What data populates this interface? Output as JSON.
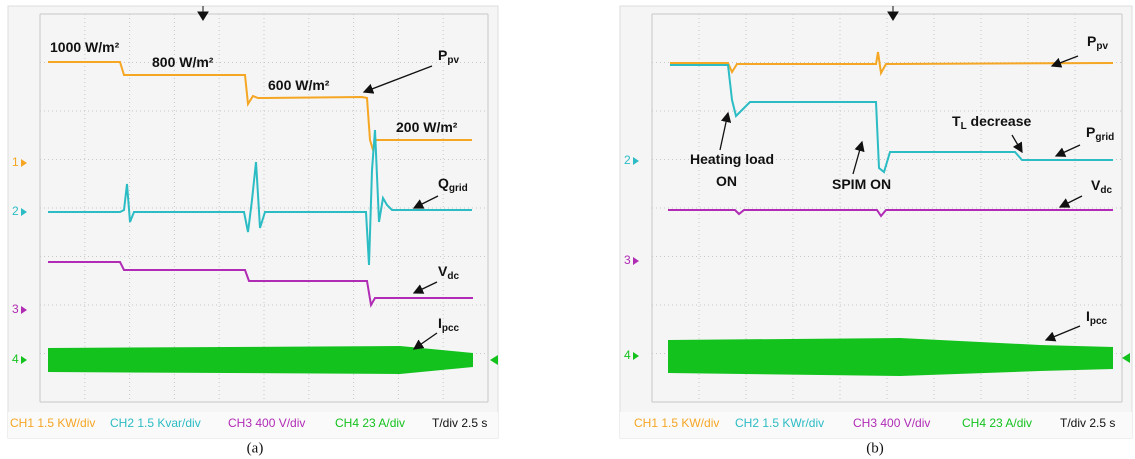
{
  "panels": [
    {
      "caption": "(a)",
      "annotations": [
        {
          "text": "1000 W/m²"
        },
        {
          "text": "800 W/m²"
        },
        {
          "text": "600 W/m²"
        },
        {
          "text": "200 W/m²"
        },
        {
          "text": "P",
          "sub": "pv"
        },
        {
          "text": "Q",
          "sub": "grid"
        },
        {
          "text": "V",
          "sub": "dc"
        },
        {
          "text": "I",
          "sub": "pcc"
        }
      ],
      "channel_markers": [
        "1",
        "2",
        "3",
        "4"
      ],
      "info": [
        "CH1 1.5 KW/div",
        "CH2 1.5 Kvar/div",
        "CH3 400 V/div",
        "CH4 23 A/div",
        "T/div 2.5 s"
      ]
    },
    {
      "caption": "(b)",
      "annotations": [
        {
          "text": "P",
          "sub": "pv"
        },
        {
          "text": "T",
          "sub": "L",
          "after": " decrease"
        },
        {
          "text": "P",
          "sub": "grid"
        },
        {
          "text": "Heating load"
        },
        {
          "text": "ON"
        },
        {
          "text": "SPIM ON"
        },
        {
          "text": "V",
          "sub": "dc"
        },
        {
          "text": "I",
          "sub": "pcc"
        }
      ],
      "channel_markers": [
        "2",
        "3",
        "4"
      ],
      "info": [
        "CH1 1.5 KW/div",
        "CH2 1.5 KWr/div",
        "CH3 400 V/div",
        "CH4 23 A/div",
        "T/div 2.5 s"
      ]
    }
  ]
}
